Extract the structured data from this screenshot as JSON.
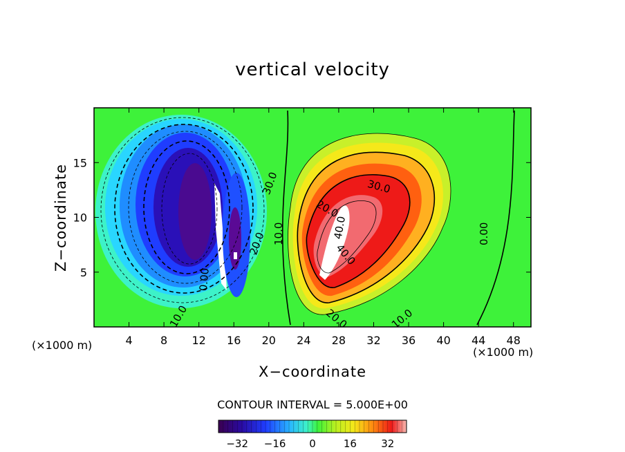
{
  "chart_data": {
    "type": "contour",
    "title": "vertical velocity",
    "xlabel": "X−coordinate",
    "ylabel": "Z−coordinate",
    "x_unit_label": "(×1000 m)",
    "xlim": [
      0,
      50
    ],
    "ylim": [
      0,
      20
    ],
    "x_ticks": [
      "4",
      "8",
      "12",
      "16",
      "20",
      "24",
      "28",
      "32",
      "36",
      "40",
      "44",
      "48"
    ],
    "y_ticks": [
      "5",
      "10",
      "15"
    ],
    "contour_interval_label": "CONTOUR INTERVAL = 5.000E+00",
    "contour_labels": [
      "10.0",
      "20.0",
      "30.0",
      "40.0",
      "0.00",
      "10.0",
      "20.0",
      "30.0",
      "40.0",
      "20.0",
      "10.0",
      "0.00"
    ],
    "colorbar": {
      "range": [
        -40,
        40
      ],
      "ticks": [
        "−32",
        "−16",
        "0",
        "16",
        "32"
      ]
    },
    "features": [
      {
        "name": "downdraft",
        "x_center": 11,
        "z_center": 10.5,
        "min_value": -40
      },
      {
        "name": "updraft",
        "x_center": 29,
        "z_center": 9,
        "max_value": 40
      }
    ]
  }
}
